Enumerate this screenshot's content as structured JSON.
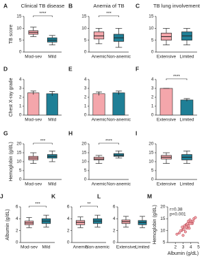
{
  "chart_data": [
    {
      "type": "box",
      "panel": "A",
      "title": "Clinical TB disease",
      "ylabel": "TB score",
      "categories": [
        "Mod-sev",
        "Mild"
      ],
      "colors": [
        "#f4a6ab",
        "#1f7f96"
      ],
      "ylim": [
        0,
        15
      ],
      "yticks": [
        0,
        5,
        10,
        15
      ],
      "annotation": "****",
      "boxes": [
        {
          "min": 6.5,
          "q1": 7.5,
          "median": 8.3,
          "q3": 9,
          "max": 10.5
        },
        {
          "min": 3,
          "q1": 4.2,
          "median": 5,
          "q3": 6,
          "max": 7
        }
      ]
    },
    {
      "type": "box",
      "panel": "B",
      "title": "Anemia of TB",
      "categories": [
        "Anemic",
        "Non-anemic"
      ],
      "colors": [
        "#f4a6ab",
        "#1f7f96"
      ],
      "ylim": [
        0,
        15
      ],
      "yticks": [
        0,
        5,
        10,
        15
      ],
      "annotation": "***",
      "boxes": [
        {
          "min": 3.5,
          "q1": 5.5,
          "median": 6.8,
          "q3": 8.5,
          "max": 10
        },
        {
          "min": 2,
          "q1": 4.5,
          "median": 6,
          "q3": 7.5,
          "max": 10
        }
      ]
    },
    {
      "type": "box",
      "panel": "C",
      "title": "TB lung involvement",
      "categories": [
        "Extensive",
        "Limited"
      ],
      "colors": [
        "#f4a6ab",
        "#1f7f96"
      ],
      "ylim": [
        0,
        15
      ],
      "yticks": [
        0,
        5,
        10,
        15
      ],
      "boxes": [
        {
          "min": 3,
          "q1": 5,
          "median": 6.5,
          "q3": 8,
          "max": 10
        },
        {
          "min": 3,
          "q1": 5,
          "median": 6.8,
          "q3": 8.5,
          "max": 10
        }
      ]
    },
    {
      "type": "bar",
      "panel": "D",
      "ylabel": "Chest X-ray grade",
      "categories": [
        "Mod-sev",
        "Mild"
      ],
      "colors": [
        "#f4a6ab",
        "#1f7f96"
      ],
      "ylim": [
        0,
        4
      ],
      "yticks": [
        0,
        1,
        2,
        3,
        4
      ],
      "values": [
        2.5,
        2.4
      ],
      "errors": [
        0.2,
        0.25
      ]
    },
    {
      "type": "bar",
      "panel": "E",
      "categories": [
        "Anemic",
        "Non-anemic"
      ],
      "colors": [
        "#f4a6ab",
        "#1f7f96"
      ],
      "ylim": [
        0,
        4
      ],
      "yticks": [
        0,
        1,
        2,
        3,
        4
      ],
      "values": [
        2.4,
        2.5
      ],
      "errors": [
        0.2,
        0.2
      ]
    },
    {
      "type": "bar",
      "panel": "F",
      "categories": [
        "Extensive",
        "Limited"
      ],
      "colors": [
        "#f4a6ab",
        "#1f7f96"
      ],
      "ylim": [
        0,
        4
      ],
      "yticks": [
        0,
        1,
        2,
        3,
        4
      ],
      "values": [
        3,
        1.7
      ],
      "errors": [
        0,
        0.15
      ],
      "annotation": "****"
    },
    {
      "type": "box",
      "panel": "G",
      "ylabel": "Hemoglobin (g/dL)",
      "categories": [
        "Mod-sev",
        "Mild"
      ],
      "colors": [
        "#f4a6ab",
        "#1f7f96"
      ],
      "ylim": [
        0,
        20
      ],
      "yticks": [
        0,
        5,
        10,
        15,
        20
      ],
      "annotation": "***",
      "boxes": [
        {
          "min": 9,
          "q1": 11,
          "median": 12,
          "q3": 13,
          "max": 15
        },
        {
          "min": 10,
          "q1": 12,
          "median": 13,
          "q3": 14,
          "max": 16
        }
      ]
    },
    {
      "type": "box",
      "panel": "H",
      "categories": [
        "Anemic",
        "Non-anemic"
      ],
      "colors": [
        "#f4a6ab",
        "#1f7f96"
      ],
      "ylim": [
        0,
        20
      ],
      "yticks": [
        0,
        5,
        10,
        15,
        20
      ],
      "annotation": "****",
      "boxes": [
        {
          "min": 9,
          "q1": 11,
          "median": 11.5,
          "q3": 12.5,
          "max": 13.5
        },
        {
          "min": 12,
          "q1": 13,
          "median": 13.5,
          "q3": 14.5,
          "max": 16
        }
      ]
    },
    {
      "type": "box",
      "panel": "I",
      "categories": [
        "Extensive",
        "Limited"
      ],
      "colors": [
        "#f4a6ab",
        "#1f7f96"
      ],
      "ylim": [
        0,
        20
      ],
      "yticks": [
        0,
        5,
        10,
        15,
        20
      ],
      "boxes": [
        {
          "min": 9,
          "q1": 11.5,
          "median": 12.5,
          "q3": 13.5,
          "max": 15
        },
        {
          "min": 9,
          "q1": 11,
          "median": 12.5,
          "q3": 14,
          "max": 16
        }
      ]
    },
    {
      "type": "box",
      "panel": "J",
      "ylabel": "Albumin (g/dL)",
      "categories": [
        "Mod-sev",
        "Mild"
      ],
      "colors": [
        "#f4a6ab",
        "#1f7f96"
      ],
      "ylim": [
        0,
        6
      ],
      "yticks": [
        0,
        2,
        4,
        6
      ],
      "annotation": "***",
      "boxes": [
        {
          "min": 2.5,
          "q1": 3,
          "median": 3.3,
          "q3": 3.6,
          "max": 4.2
        },
        {
          "min": 2.6,
          "q1": 3.2,
          "median": 3.6,
          "q3": 4,
          "max": 4.6
        }
      ]
    },
    {
      "type": "box",
      "panel": "K",
      "categories": [
        "Anemic",
        "Non-anemic"
      ],
      "colors": [
        "#f4a6ab",
        "#1f7f96"
      ],
      "ylim": [
        0,
        6
      ],
      "yticks": [
        0,
        2,
        4,
        6
      ],
      "annotation": "**",
      "boxes": [
        {
          "min": 2.5,
          "q1": 3,
          "median": 3.4,
          "q3": 3.7,
          "max": 4.3
        },
        {
          "min": 2.6,
          "q1": 3.2,
          "median": 3.6,
          "q3": 4,
          "max": 4.6
        }
      ]
    },
    {
      "type": "box",
      "panel": "L",
      "categories": [
        "Extensive",
        "Limited"
      ],
      "colors": [
        "#f4a6ab",
        "#1f7f96"
      ],
      "ylim": [
        0,
        6
      ],
      "yticks": [
        0,
        2,
        4,
        6
      ],
      "boxes": [
        {
          "min": 2.6,
          "q1": 3.2,
          "median": 3.5,
          "q3": 3.8,
          "max": 4.4
        },
        {
          "min": 2.5,
          "q1": 3,
          "median": 3.4,
          "q3": 3.7,
          "max": 4.4
        }
      ]
    },
    {
      "type": "scatter",
      "panel": "M",
      "ylabel": "Hemoglobin (g/dL)",
      "xlabel": "Albumin (g/dL)",
      "color": "#f4a6ab",
      "edge": "#b03a48",
      "annotations": [
        "r=0.38",
        "p<0.001"
      ],
      "xlim": [
        1,
        5
      ],
      "xticks": [
        2,
        3,
        4,
        5
      ],
      "ylim": [
        5,
        20
      ],
      "yticks": [
        5,
        10,
        15,
        20
      ],
      "x": [
        2.8,
        3.0,
        3.2,
        3.4,
        3.5,
        3.6,
        3.8,
        4.0,
        4.2,
        3.1,
        3.3,
        2.5,
        2.9,
        3.7,
        3.9,
        4.1,
        4.4,
        3.0,
        3.5,
        2.7,
        3.6,
        3.8,
        4.3,
        3.2,
        3.4,
        2.2,
        4.6,
        3.9,
        3.3,
        3.7
      ],
      "y": [
        10,
        11,
        12,
        12.5,
        11,
        13,
        13.5,
        14,
        13,
        10.5,
        12,
        9,
        11.5,
        12,
        14.5,
        13,
        15,
        8,
        12.5,
        10,
        13,
        11,
        14,
        12,
        11.5,
        8.5,
        15.5,
        13,
        9.5,
        14
      ]
    }
  ]
}
